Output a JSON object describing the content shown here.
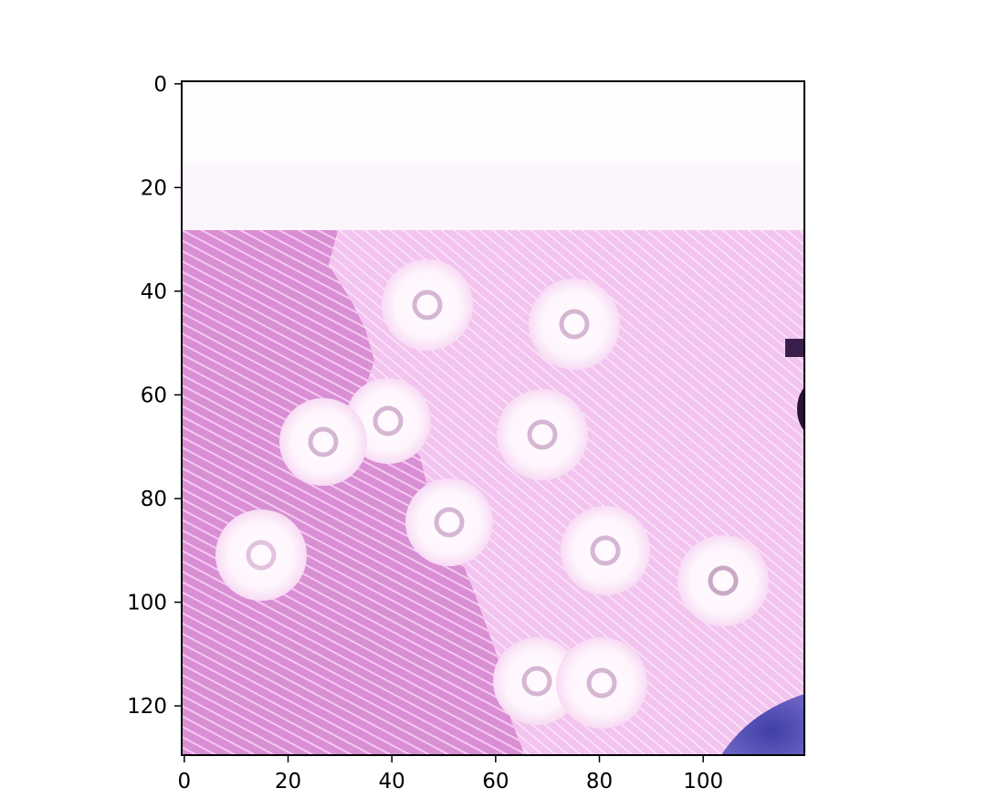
{
  "figure": {
    "description_type": "microscopy image rendered with pixel-index axes",
    "x_axis": {
      "range": [
        0,
        120
      ],
      "ticks": [
        0,
        20,
        40,
        60,
        80,
        100
      ]
    },
    "y_axis": {
      "range": [
        0,
        130
      ],
      "inverted": true,
      "ticks": [
        0,
        20,
        40,
        60,
        80,
        100,
        120
      ]
    },
    "colors": {
      "background_blank": "#fdfbfd",
      "stroma_light": "#f2c2ef",
      "stroma_dark": "#dd92d8",
      "hatch": "#ffffff",
      "vacuole_fill": "#fff8fe",
      "vacuole_core": "#d5b8d4",
      "nucleus": "#4b4cae",
      "nucleus_dark": "#3a1f4e",
      "axis": "#000000"
    }
  }
}
